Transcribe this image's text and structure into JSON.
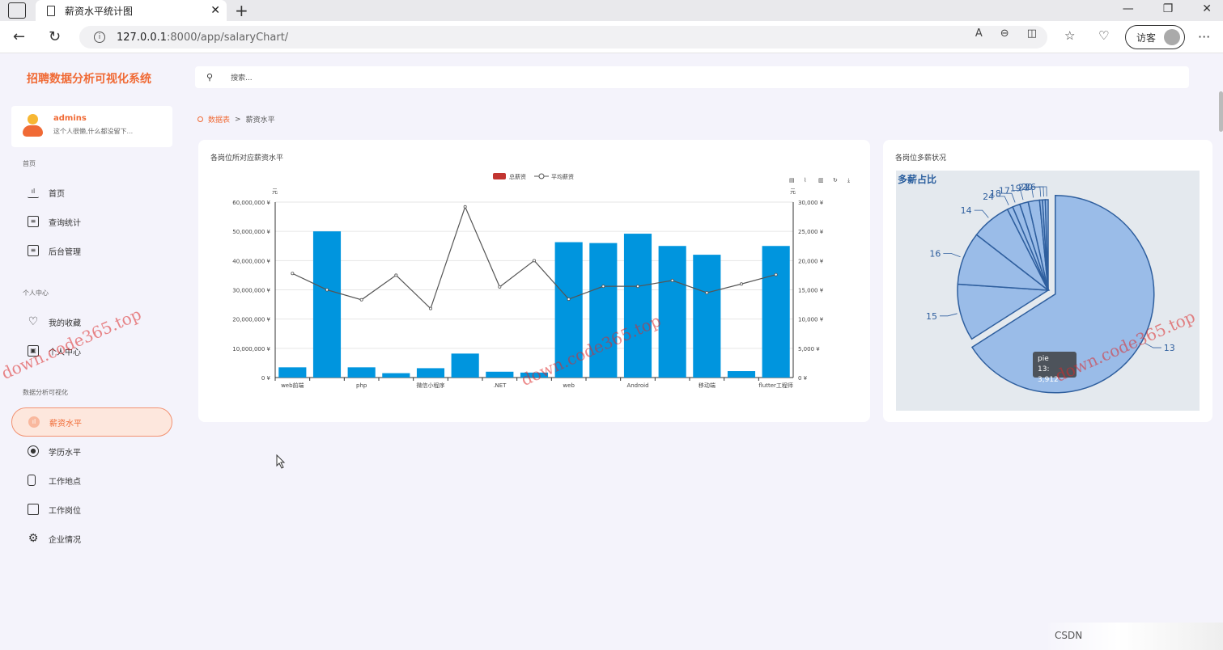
{
  "browser": {
    "tab_title": "薪资水平统计图",
    "url_host": "127.0.0.1",
    "url_rest": ":8000/app/salaryChart/",
    "visitor_label": "访客"
  },
  "sidebar": {
    "logo": "招聘数据分析可视化系统",
    "user": {
      "name": "admins",
      "signature": "这个人很懒,什么都没留下..."
    },
    "sections": [
      {
        "title": "首页",
        "items": [
          "首页",
          "查询统计",
          "后台管理"
        ]
      },
      {
        "title": "个人中心",
        "items": [
          "我的收藏",
          "个人中心"
        ]
      },
      {
        "title": "数据分析可视化",
        "items": [
          "薪资水平",
          "学历水平",
          "工作地点",
          "工作岗位",
          "企业情况"
        ]
      }
    ],
    "active_item": "薪资水平"
  },
  "search": {
    "placeholder": "搜索..."
  },
  "breadcrumb": {
    "home": "数据表",
    "separator": ">",
    "current": "薪资水平"
  },
  "card1": {
    "title": "各岗位所对应薪资水平"
  },
  "card2": {
    "title": "各岗位多薪状况",
    "pie_title": "多薪占比",
    "tooltip_series": "pie",
    "tooltip_value": "13: 3,912"
  },
  "watermark": "down.code365.top",
  "footer_brand": "CSDN",
  "colors": {
    "accent": "#f06a35",
    "bar": "#0095de",
    "line": "#555555",
    "pie": "#8db4e6"
  },
  "chart_data": [
    {
      "type": "bar",
      "legend": [
        "总薪资",
        "平均薪资"
      ],
      "y_left_unit": "元",
      "y_right_unit": "元",
      "y_left_ticks": [
        "0 ¥",
        "10,000,000 ¥",
        "20,000,000 ¥",
        "30,000,000 ¥",
        "40,000,000 ¥",
        "50,000,000 ¥",
        "60,000,000 ¥"
      ],
      "y_right_ticks": [
        "0 ¥",
        "5,000 ¥",
        "10,000 ¥",
        "15,000 ¥",
        "20,000 ¥",
        "25,000 ¥",
        "30,000 ¥"
      ],
      "ylim_left": [
        0,
        60000000
      ],
      "ylim_right": [
        0,
        30000
      ],
      "x_tick_labels": [
        "web前端",
        "php",
        "微信小程序",
        ".NET",
        "web",
        "Android",
        "移动端",
        "flutter工程师"
      ],
      "series": [
        {
          "name": "总薪资",
          "kind": "bar",
          "values": [
            3500000,
            50000000,
            3500000,
            1500000,
            3200000,
            8200000,
            2000000,
            1700000,
            46300000,
            46000000,
            49200000,
            45000000,
            42000000,
            2200000,
            45000000
          ]
        },
        {
          "name": "平均薪资",
          "kind": "line",
          "values": [
            17800,
            15000,
            13300,
            17500,
            11800,
            29200,
            15500,
            20000,
            13400,
            15600,
            15600,
            16600,
            14500,
            16000,
            17600
          ]
        }
      ]
    },
    {
      "type": "pie",
      "title": "多薪占比",
      "labels": [
        "13",
        "15",
        "16",
        "14",
        "24",
        "18",
        "17",
        "19",
        "21",
        "20",
        "26"
      ],
      "values": [
        3912,
        600,
        560,
        420,
        60,
        80,
        90,
        120,
        30,
        30,
        30
      ]
    }
  ]
}
